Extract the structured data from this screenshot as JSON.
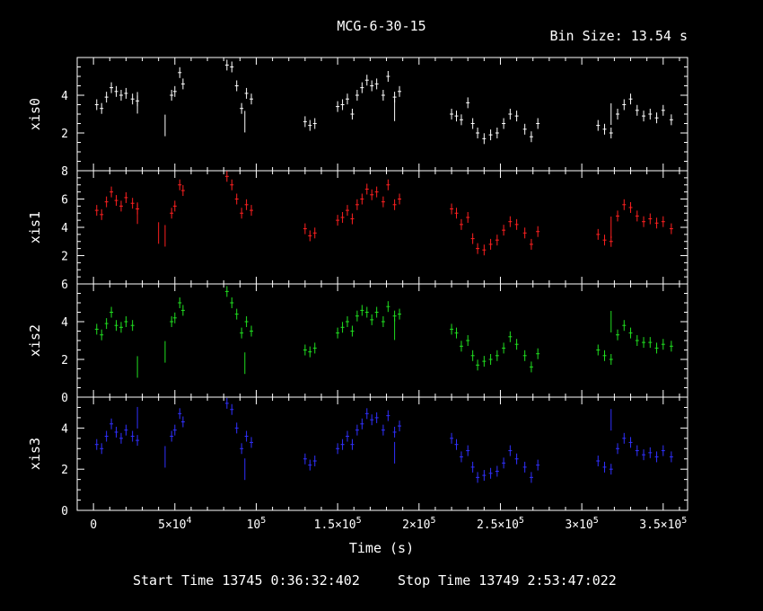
{
  "header": {
    "title": "MCG-6-30-15",
    "bin_size": "Bin Size: 13.54 s"
  },
  "footer": {
    "start_time": "Start Time 13745  0:36:32:402",
    "stop_time": "Stop Time 13749  2:53:47:022"
  },
  "x_axis": {
    "label": "Time (s)",
    "range": [
      -10000,
      365000
    ],
    "ticks": [
      {
        "value": 0,
        "base": "0",
        "exp": ""
      },
      {
        "value": 50000,
        "base": "5×10",
        "exp": "4"
      },
      {
        "value": 100000,
        "base": "10",
        "exp": "5"
      },
      {
        "value": 150000,
        "base": "1.5×10",
        "exp": "5"
      },
      {
        "value": 200000,
        "base": "2×10",
        "exp": "5"
      },
      {
        "value": 250000,
        "base": "2.5×10",
        "exp": "5"
      },
      {
        "value": 300000,
        "base": "3×10",
        "exp": "5"
      },
      {
        "value": 350000,
        "base": "3.5×10",
        "exp": "5"
      }
    ]
  },
  "chart_data": [
    {
      "type": "scatter",
      "name": "xis0",
      "ylabel": "xis0",
      "color": "#ffffff",
      "ylim": [
        0,
        6
      ],
      "yticks": [
        2,
        4
      ],
      "x": [
        2000,
        5000,
        8000,
        11000,
        14000,
        17000,
        20000,
        24000,
        27000,
        48000,
        50000,
        53000,
        55000,
        82000,
        85000,
        88000,
        91000,
        94000,
        97000,
        130000,
        133000,
        136000,
        150000,
        153000,
        156000,
        159000,
        162000,
        165000,
        168000,
        171000,
        174000,
        178000,
        181000,
        185000,
        188000,
        220000,
        223000,
        226000,
        230000,
        233000,
        236000,
        240000,
        244000,
        248000,
        252000,
        256000,
        260000,
        265000,
        269000,
        273000,
        310000,
        314000,
        318000,
        322000,
        326000,
        330000,
        334000,
        338000,
        342000,
        346000,
        350000,
        355000
      ],
      "y": [
        3.5,
        3.3,
        3.9,
        4.4,
        4.2,
        4.0,
        4.1,
        3.8,
        3.7,
        4.0,
        4.2,
        5.2,
        4.6,
        5.6,
        5.5,
        4.5,
        3.3,
        4.1,
        3.8,
        2.6,
        2.4,
        2.5,
        3.4,
        3.5,
        3.8,
        3.0,
        4.0,
        4.4,
        4.8,
        4.5,
        4.6,
        4.0,
        5.0,
        3.9,
        4.2,
        3.0,
        2.9,
        2.7,
        3.6,
        2.5,
        2.0,
        1.7,
        1.9,
        2.0,
        2.5,
        3.0,
        2.9,
        2.2,
        1.8,
        2.5,
        2.4,
        2.2,
        2.0,
        3.0,
        3.5,
        3.8,
        3.2,
        2.9,
        3.0,
        2.8,
        3.2,
        2.7
      ],
      "isolated": [
        {
          "x": 44000,
          "y": 2.4
        },
        {
          "x": 27000,
          "y": 3.6
        },
        {
          "x": 93000,
          "y": 2.6
        },
        {
          "x": 185000,
          "y": 3.2
        },
        {
          "x": 318000,
          "y": 3.0
        }
      ]
    },
    {
      "type": "scatter",
      "name": "xis1",
      "ylabel": "xis1",
      "color": "#ff2020",
      "ylim": [
        0,
        8
      ],
      "yticks": [
        2,
        4,
        6,
        8
      ],
      "x": [
        2000,
        5000,
        8000,
        11000,
        14000,
        17000,
        20000,
        24000,
        27000,
        48000,
        50000,
        53000,
        55000,
        82000,
        85000,
        88000,
        91000,
        94000,
        97000,
        130000,
        133000,
        136000,
        150000,
        153000,
        156000,
        159000,
        162000,
        165000,
        168000,
        171000,
        174000,
        178000,
        181000,
        185000,
        188000,
        220000,
        223000,
        226000,
        230000,
        233000,
        236000,
        240000,
        244000,
        248000,
        252000,
        256000,
        260000,
        265000,
        269000,
        273000,
        310000,
        314000,
        318000,
        322000,
        326000,
        330000,
        334000,
        338000,
        342000,
        346000,
        350000,
        355000
      ],
      "y": [
        5.2,
        4.9,
        5.8,
        6.5,
        5.9,
        5.5,
        6.1,
        5.7,
        5.3,
        5.0,
        5.5,
        7.0,
        6.6,
        7.6,
        7.0,
        6.0,
        5.0,
        5.6,
        5.2,
        3.9,
        3.4,
        3.6,
        4.5,
        4.7,
        5.2,
        4.6,
        5.6,
        6.0,
        6.7,
        6.3,
        6.5,
        5.8,
        7.0,
        5.6,
        6.0,
        5.3,
        5.0,
        4.2,
        4.7,
        3.2,
        2.5,
        2.4,
        2.8,
        3.1,
        3.8,
        4.4,
        4.2,
        3.6,
        2.8,
        3.7,
        3.5,
        3.1,
        3.0,
        4.8,
        5.6,
        5.4,
        4.8,
        4.4,
        4.6,
        4.3,
        4.4,
        3.9
      ],
      "isolated": [
        {
          "x": 40000,
          "y": 3.6
        },
        {
          "x": 44000,
          "y": 3.4
        },
        {
          "x": 27000,
          "y": 5.0
        },
        {
          "x": 318000,
          "y": 4.0
        }
      ]
    },
    {
      "type": "scatter",
      "name": "xis2",
      "ylabel": "xis2",
      "color": "#20e020",
      "ylim": [
        0,
        6
      ],
      "yticks": [
        0,
        2,
        4,
        6
      ],
      "x": [
        2000,
        5000,
        8000,
        11000,
        14000,
        17000,
        20000,
        24000,
        48000,
        50000,
        53000,
        55000,
        82000,
        85000,
        88000,
        91000,
        94000,
        97000,
        130000,
        133000,
        136000,
        150000,
        153000,
        156000,
        159000,
        162000,
        165000,
        168000,
        171000,
        174000,
        178000,
        181000,
        185000,
        188000,
        220000,
        223000,
        226000,
        230000,
        233000,
        236000,
        240000,
        244000,
        248000,
        252000,
        256000,
        260000,
        265000,
        269000,
        273000,
        310000,
        314000,
        318000,
        322000,
        326000,
        330000,
        334000,
        338000,
        342000,
        346000,
        350000,
        355000
      ],
      "y": [
        3.6,
        3.3,
        3.9,
        4.5,
        3.8,
        3.7,
        4.0,
        3.8,
        4.0,
        4.2,
        5.0,
        4.6,
        5.6,
        5.0,
        4.4,
        3.4,
        4.0,
        3.5,
        2.5,
        2.4,
        2.6,
        3.4,
        3.7,
        4.0,
        3.5,
        4.3,
        4.6,
        4.5,
        4.1,
        4.5,
        4.0,
        4.8,
        4.3,
        4.4,
        3.6,
        3.4,
        2.7,
        3.0,
        2.2,
        1.7,
        1.9,
        2.0,
        2.2,
        2.6,
        3.2,
        2.8,
        2.2,
        1.6,
        2.3,
        2.5,
        2.2,
        2.0,
        3.3,
        3.8,
        3.4,
        3.0,
        2.9,
        2.9,
        2.6,
        2.8,
        2.7
      ],
      "isolated": [
        {
          "x": 27000,
          "y": 1.6
        },
        {
          "x": 44000,
          "y": 2.4
        },
        {
          "x": 93000,
          "y": 1.8
        },
        {
          "x": 185000,
          "y": 3.6
        },
        {
          "x": 318000,
          "y": 4.0
        }
      ]
    },
    {
      "type": "scatter",
      "name": "xis3",
      "ylabel": "xis3",
      "color": "#3030ff",
      "ylim": [
        0,
        5.5
      ],
      "yticks": [
        0,
        2,
        4
      ],
      "x": [
        2000,
        5000,
        8000,
        11000,
        14000,
        17000,
        20000,
        24000,
        27000,
        48000,
        50000,
        53000,
        55000,
        82000,
        85000,
        88000,
        91000,
        94000,
        97000,
        130000,
        133000,
        136000,
        150000,
        153000,
        156000,
        159000,
        162000,
        165000,
        168000,
        171000,
        174000,
        178000,
        181000,
        185000,
        188000,
        220000,
        223000,
        226000,
        230000,
        233000,
        236000,
        240000,
        244000,
        248000,
        252000,
        256000,
        260000,
        265000,
        269000,
        273000,
        310000,
        314000,
        318000,
        322000,
        326000,
        330000,
        334000,
        338000,
        342000,
        346000,
        350000,
        355000
      ],
      "y": [
        3.2,
        3.0,
        3.6,
        4.2,
        3.8,
        3.5,
        3.9,
        3.6,
        3.4,
        3.6,
        3.9,
        4.7,
        4.3,
        5.2,
        4.9,
        4.0,
        3.0,
        3.6,
        3.3,
        2.5,
        2.2,
        2.4,
        3.0,
        3.2,
        3.6,
        3.2,
        3.9,
        4.2,
        4.7,
        4.4,
        4.5,
        3.9,
        4.6,
        3.8,
        4.1,
        3.5,
        3.2,
        2.6,
        2.9,
        2.1,
        1.6,
        1.7,
        1.8,
        1.9,
        2.3,
        2.9,
        2.5,
        2.1,
        1.6,
        2.2,
        2.4,
        2.1,
        2.0,
        3.0,
        3.5,
        3.3,
        2.9,
        2.7,
        2.8,
        2.6,
        2.9,
        2.6
      ],
      "isolated": [
        {
          "x": 27000,
          "y": 4.5
        },
        {
          "x": 44000,
          "y": 2.6
        },
        {
          "x": 93000,
          "y": 2.0
        },
        {
          "x": 185000,
          "y": 2.8
        },
        {
          "x": 318000,
          "y": 4.4
        }
      ]
    }
  ]
}
